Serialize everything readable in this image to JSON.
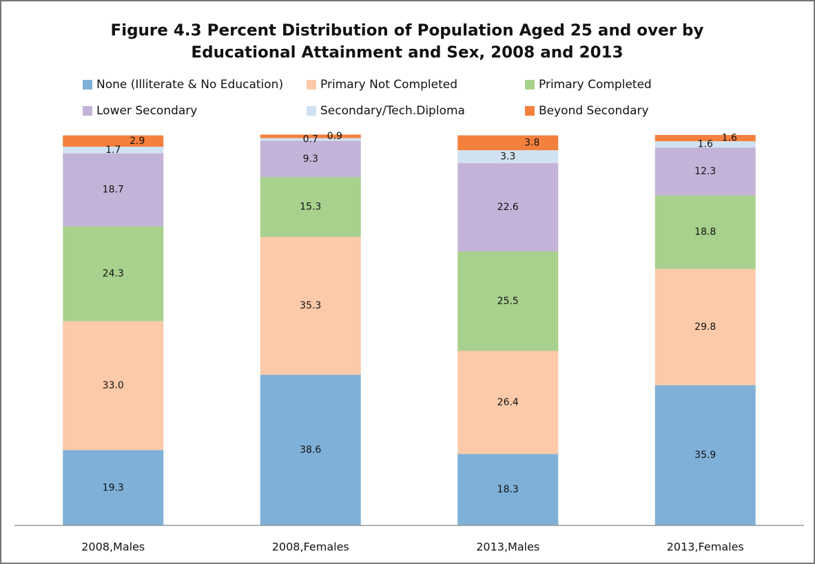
{
  "chart_data": {
    "type": "stacked_bar",
    "title": [
      "Figure 4.3  Percent Distribution of Population Aged 25 and over  by",
      "Educational Attainment and Sex,  2008 and 2013"
    ],
    "categories": [
      "2008,Males",
      "2008,Females",
      "2013,Males",
      "2013,Females"
    ],
    "ylim": [
      0,
      100
    ],
    "series": [
      {
        "name": "None (Illiterate & No Education)",
        "color": "#7fb0d8",
        "values": [
          19.3,
          38.6,
          18.3,
          35.9
        ],
        "value_labels": [
          "19.3",
          "38.6",
          "18.3",
          "35.9"
        ]
      },
      {
        "name": "Primary Not Completed",
        "color": "#fcc9a9",
        "values": [
          33.0,
          35.3,
          26.4,
          29.8
        ],
        "value_labels": [
          "33.0",
          "35.3",
          "26.4",
          "29.8"
        ]
      },
      {
        "name": "Primary Completed",
        "color": "#a9d18e",
        "values": [
          24.3,
          15.3,
          25.5,
          18.8
        ],
        "value_labels": [
          "24.3",
          "15.3",
          "25.5",
          "18.8"
        ]
      },
      {
        "name": "Lower Secondary",
        "color": "#c4b3d8",
        "values": [
          18.7,
          9.3,
          22.6,
          12.3
        ],
        "value_labels": [
          "18.7",
          "9.3",
          "22.6",
          "12.3"
        ]
      },
      {
        "name": "Secondary/Tech.Diploma",
        "color": "#d0e2f1",
        "values": [
          1.7,
          0.7,
          3.3,
          1.6
        ],
        "value_labels": [
          "1.7",
          "0.7",
          "3.3",
          "1.6"
        ]
      },
      {
        "name": "Beyond Secondary",
        "color": "#f4803e",
        "values": [
          2.9,
          0.9,
          3.8,
          1.6
        ],
        "value_labels": [
          "2.9",
          "0.9",
          "3.8",
          "1.6"
        ]
      }
    ]
  }
}
